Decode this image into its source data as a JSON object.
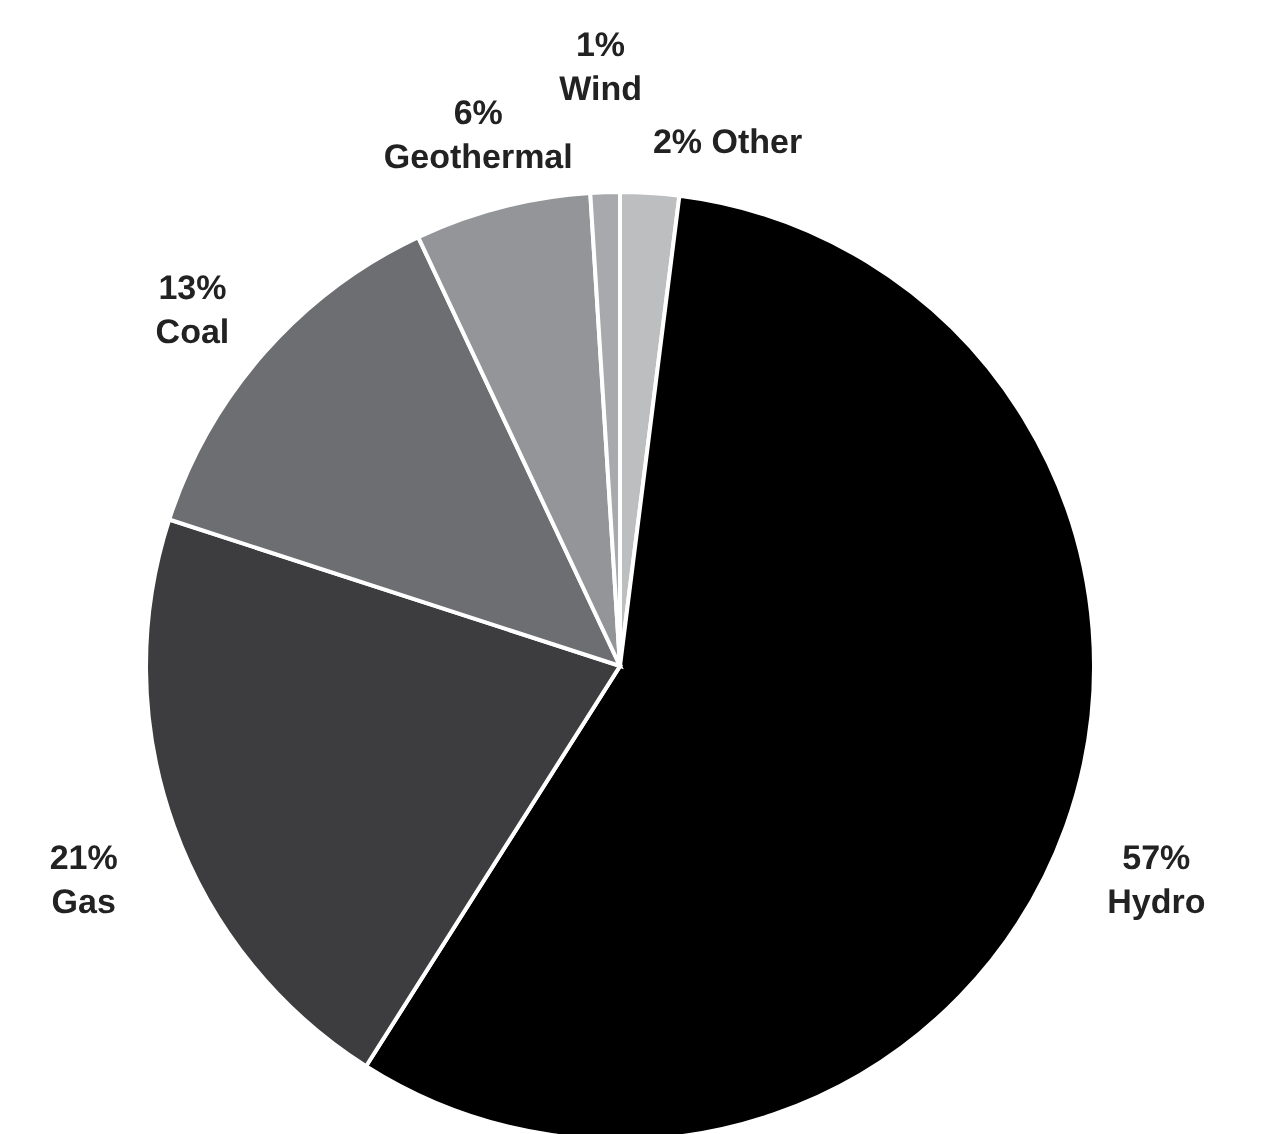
{
  "chart_data": {
    "type": "pie",
    "categories": [
      "Other",
      "Hydro",
      "Gas",
      "Coal",
      "Geothermal",
      "Wind"
    ],
    "values": [
      2,
      57,
      21,
      13,
      6,
      1
    ],
    "value_labels": [
      "2%",
      "57%",
      "21%",
      "13%",
      "6%",
      "1%"
    ],
    "colors": [
      "#bcbec0",
      "#000000",
      "#3d3d3f",
      "#6d6e71",
      "#939598",
      "#a7a9ac"
    ]
  }
}
